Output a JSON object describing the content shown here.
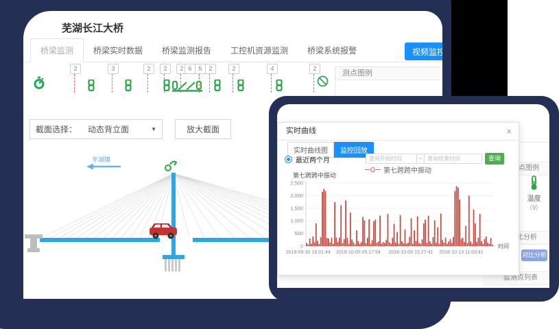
{
  "colors": {
    "frame_navy": "#232f54",
    "accent_blue": "#1890ff",
    "sensor_green": "#28a745",
    "chart_red": "#c0392c",
    "deck_blue": "#2aa7e5"
  },
  "main": {
    "title": "芜湖长江大桥",
    "tabs": [
      {
        "label": "桥梁监测",
        "active": true
      },
      {
        "label": "桥梁实时数据",
        "active": false
      },
      {
        "label": "桥梁监测报告",
        "active": false
      },
      {
        "label": "工控机资源监测",
        "active": false
      },
      {
        "label": "桥梁系统报警",
        "active": false
      }
    ],
    "video_button": "视频监控",
    "sensor_badges": [
      "2",
      "3",
      "2",
      "2",
      "2",
      "6",
      "5",
      "2",
      "2",
      "4",
      "2"
    ],
    "legend_panel_title": "测点图例",
    "section": {
      "label": "截面选择：",
      "value": "动态背立面",
      "caret": "▼",
      "zoom_button": "放大截面"
    },
    "town_label": "平湖镇"
  },
  "modal_page": {
    "legend_title": "测点图例",
    "temp_label": "温度",
    "temp_count": "（9）",
    "compare_title": "对比分析",
    "compare_button": "对比分析",
    "list_title": "监测点列表"
  },
  "dialog": {
    "title": "实时曲线",
    "close": "×",
    "tab_realtime": "实时曲线图",
    "tab_playback": "监控回放",
    "radio_label": "最近两个月",
    "start_placeholder": "查询开始时间",
    "range_separator": "-",
    "end_placeholder": "查询结束时间",
    "search_button": "查询",
    "legend_label": "第七跨跨中振动",
    "chart_title": "第七跨跨中振动"
  },
  "chart_data": {
    "type": "bar",
    "title": "第七跨跨中振动",
    "xlabel": "时间",
    "ylim": [
      0,
      2500
    ],
    "y_ticks": [
      "2,500",
      "2,000",
      "1,500",
      "1,000",
      "500",
      "0"
    ],
    "y_values": [
      2500,
      2000,
      1500,
      1000,
      500,
      0
    ],
    "x_ticks": [
      "2018-09-30 16:01:44",
      "2018-10-05 05:17:54",
      "2018-10-09 15:27:41",
      "2018-10-13 11:03:41"
    ],
    "x_tick_pos": [
      0.012,
      0.28,
      0.56,
      0.83
    ],
    "legend_position": "top",
    "grid": true,
    "series": [
      {
        "name": "第七跨跨中振动",
        "color": "#c0392c",
        "values": [
          120,
          60,
          300,
          90,
          380,
          150,
          900,
          210,
          80,
          350,
          2150,
          2260,
          2180,
          320,
          300,
          140,
          330,
          90,
          1740,
          340,
          160,
          330,
          1620,
          120,
          280,
          1810,
          330,
          90,
          1330,
          260,
          150,
          70,
          620,
          200,
          90,
          160,
          1150,
          1020,
          120,
          330,
          1060,
          90,
          230,
          980,
          1050,
          130,
          180,
          1200,
          90,
          160,
          120,
          240,
          1270,
          150,
          90,
          330,
          880,
          140,
          560,
          90,
          1230,
          190,
          110,
          660,
          90,
          140,
          370,
          1100,
          90,
          620,
          200,
          1180,
          120,
          90,
          260,
          900,
          1050,
          130,
          1200,
          180,
          90,
          350,
          1020,
          130,
          750,
          90,
          1290,
          240,
          130,
          330,
          90,
          180,
          280,
          120,
          360,
          2180,
          2380,
          2320,
          1850,
          280,
          330,
          160,
          800,
          120,
          2000,
          180,
          90,
          1450,
          900,
          160,
          330,
          1280,
          200,
          90,
          280,
          380,
          140,
          90,
          320,
          60
        ]
      }
    ]
  }
}
